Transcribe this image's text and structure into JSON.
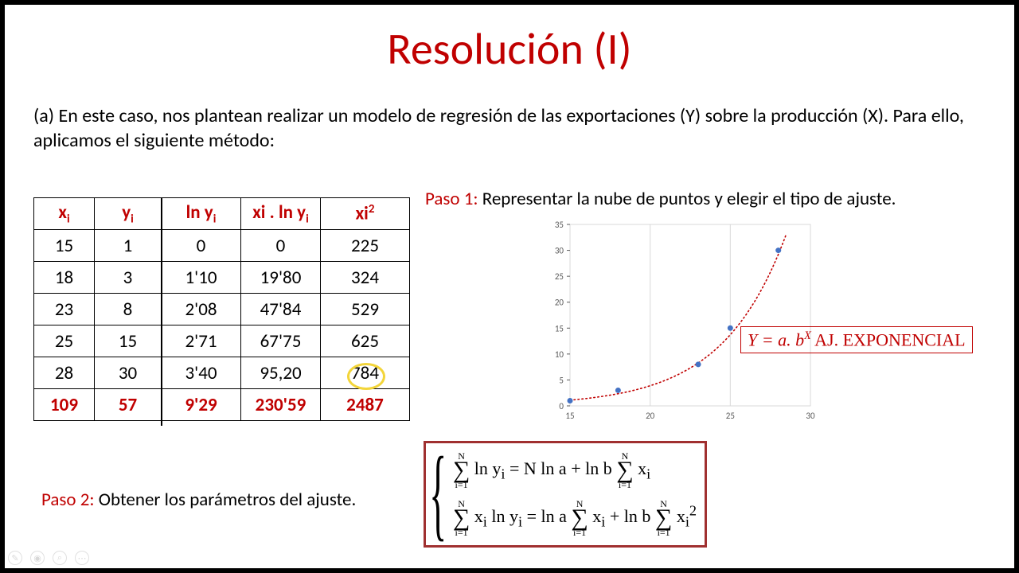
{
  "title": {
    "text": "Resolución (I)",
    "color": "#c00000"
  },
  "intro": "(a) En este caso, nos plantean realizar un modelo de regresión de las exportaciones (Y) sobre la producción (X). Para ello, aplicamos el siguiente método:",
  "paso1": {
    "label": "Paso 1:",
    "text": " Representar la nube de puntos y elegir el tipo de ajuste."
  },
  "paso2": {
    "label": "Paso 2:",
    "text": " Obtener los parámetros del ajuste."
  },
  "table": {
    "columns": [
      "xᵢ",
      "yᵢ",
      "ln yᵢ",
      "xi . ln yᵢ",
      "xi²"
    ],
    "header_color": "#c00000",
    "rows": [
      [
        "15",
        "1",
        "0",
        "0",
        "225"
      ],
      [
        "18",
        "3",
        "1'10",
        "19'80",
        "324"
      ],
      [
        "23",
        "8",
        "2'08",
        "47'84",
        "529"
      ],
      [
        "25",
        "15",
        "2'71",
        "67'75",
        "625"
      ],
      [
        "28",
        "30",
        "3'40",
        "95,20",
        "784"
      ]
    ],
    "sum_row": [
      "109",
      "57",
      "9'29",
      "230'59",
      "2487"
    ],
    "highlight_cell": {
      "row": 4,
      "col": 4
    }
  },
  "chart": {
    "type": "scatter",
    "points": [
      [
        15,
        1
      ],
      [
        18,
        3
      ],
      [
        23,
        8
      ],
      [
        25,
        15
      ],
      [
        28,
        30
      ]
    ],
    "curve": {
      "a": 0.025,
      "b": 1.287,
      "color": "#c00000",
      "style": "dotted"
    },
    "point_color": "#4472c4",
    "xlim": [
      15,
      30
    ],
    "xtick_step": 5,
    "ylim": [
      0,
      35
    ],
    "ytick_step": 5,
    "xticks": [
      "15",
      "20",
      "25",
      "30"
    ],
    "yticks": [
      "0",
      "5",
      "10",
      "15",
      "20",
      "25",
      "30",
      "35"
    ],
    "background": "#ffffff",
    "grid_color": "#d9d9d9",
    "axis_label_fontsize": 11,
    "axis_label_color": "#595959"
  },
  "fit_equation": {
    "lhs": "Y = a. b",
    "sup": "X",
    "label": " AJ. EXPONENCIAL"
  },
  "system": {
    "eq1_parts": [
      "Σ ln yᵢ = N ln a + ln b Σ xᵢ"
    ],
    "eq2_parts": [
      "Σ xᵢ ln yᵢ = ln a Σ xᵢ + ln b Σ xᵢ²"
    ],
    "sum_upper": "N",
    "sum_lower": "i=1"
  }
}
